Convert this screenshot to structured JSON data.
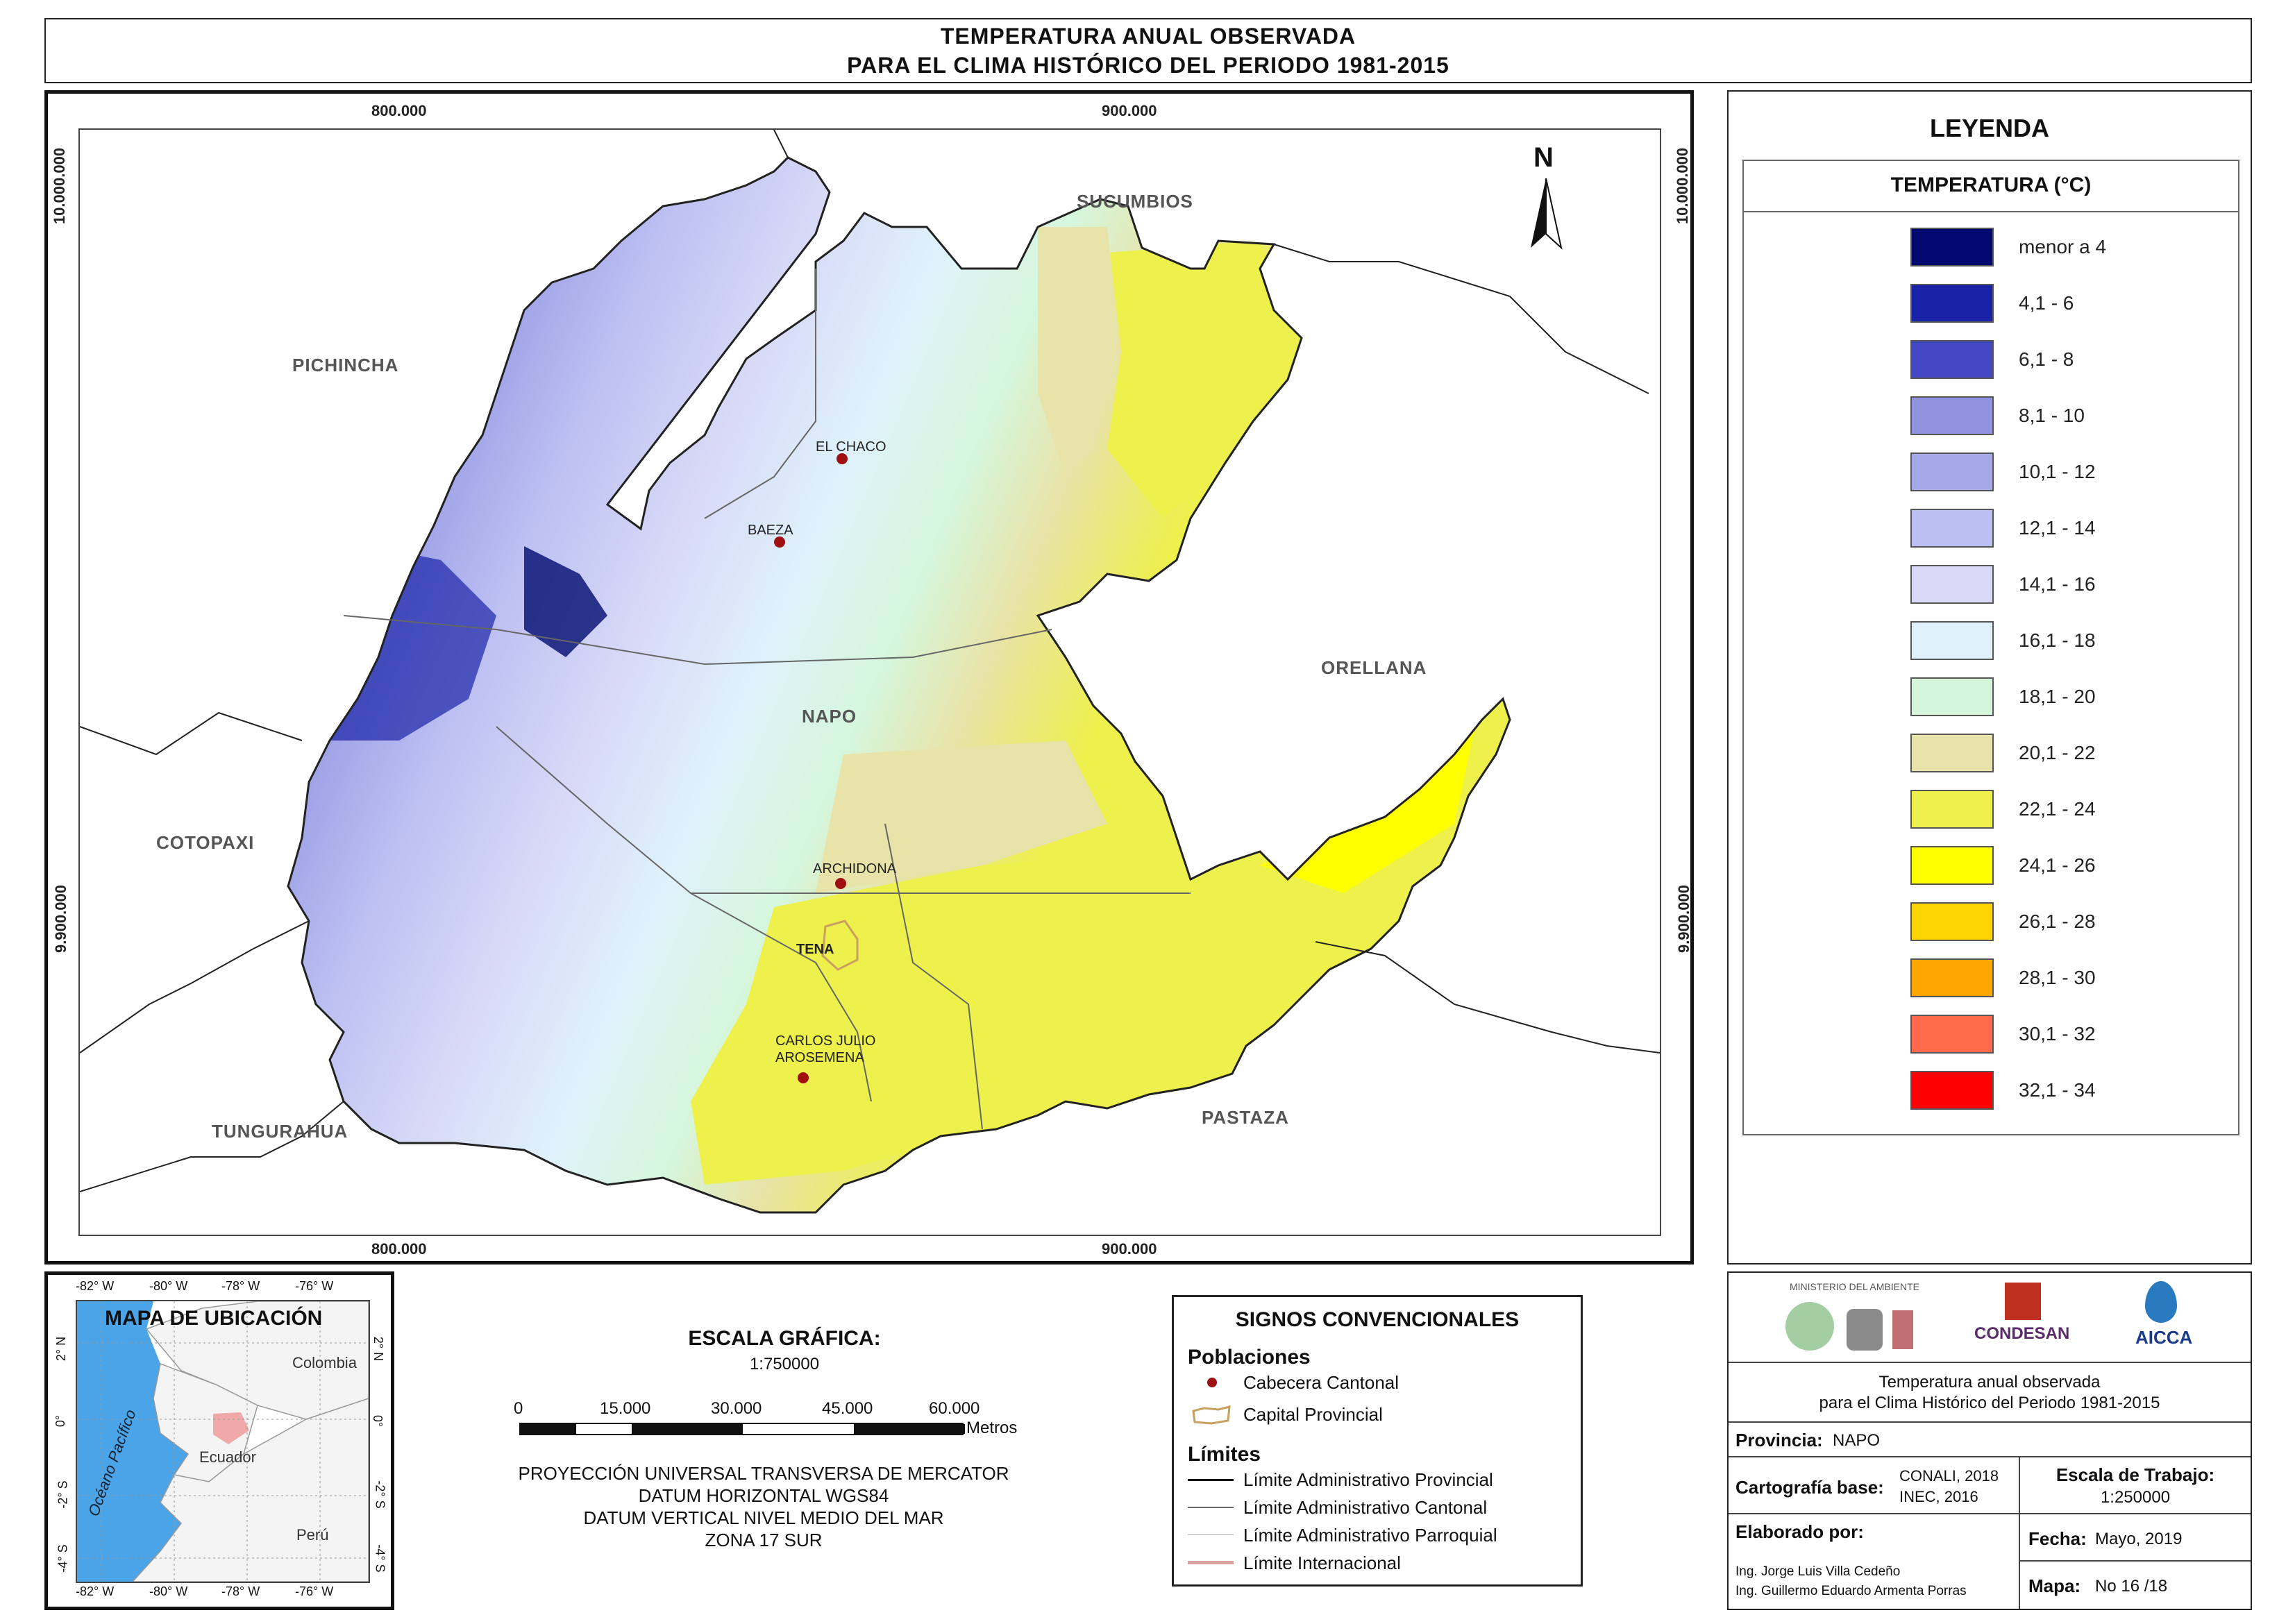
{
  "title": {
    "line1": "TEMPERATURA ANUAL OBSERVADA",
    "line2": "PARA EL CLIMA HISTÓRICO DEL PERIODO 1981-2015"
  },
  "map": {
    "grid_x": [
      "800.000",
      "900.000"
    ],
    "grid_y": [
      "10.000.000",
      "9.900.000"
    ],
    "north": "N",
    "neighbors": [
      "PICHINCHA",
      "SUCUMBIOS",
      "ORELLANA",
      "COTOPAXI",
      "TUNGURAHUA",
      "PASTAZA"
    ],
    "province_label": "NAPO",
    "towns": [
      "EL CHACO",
      "BAEZA",
      "ARCHIDONA",
      "TENA",
      "CARLOS JULIO",
      "AROSEMENA"
    ]
  },
  "legend": {
    "title": "LEYENDA",
    "subtitle": "TEMPERATURA (°C)",
    "classes": [
      {
        "label": "menor a 4",
        "color": "#000a6e"
      },
      {
        "label": "4,1 - 6",
        "color": "#1a23a8"
      },
      {
        "label": "6,1 - 8",
        "color": "#4248c4"
      },
      {
        "label": "8,1 - 10",
        "color": "#8f93e0"
      },
      {
        "label": "10,1 - 12",
        "color": "#a5a9ea"
      },
      {
        "label": "12,1 - 14",
        "color": "#bcbff2"
      },
      {
        "label": "14,1 - 16",
        "color": "#d8daf7"
      },
      {
        "label": "16,1 - 18",
        "color": "#dff2fb"
      },
      {
        "label": "18,1 - 20",
        "color": "#d6f6dc"
      },
      {
        "label": "20,1 - 22",
        "color": "#e8e3a8"
      },
      {
        "label": "22,1 - 24",
        "color": "#eef04c"
      },
      {
        "label": "24,1 - 26",
        "color": "#ffff00"
      },
      {
        "label": "26,1 - 28",
        "color": "#ffd400"
      },
      {
        "label": "28,1 - 30",
        "color": "#ffa600"
      },
      {
        "label": "30,1 - 32",
        "color": "#ff6a4c"
      },
      {
        "label": "32,1 - 34",
        "color": "#ff0000"
      }
    ]
  },
  "location_map": {
    "title": "MAPA DE UBICACIÓN",
    "lon_ticks": [
      "-82° W",
      "-80° W",
      "-78° W",
      "-76° W"
    ],
    "lat_ticks": [
      "2° N",
      "0°",
      "-2° S",
      "-4° S"
    ],
    "ocean": "Océano Pacífico",
    "countries": [
      "Colombia",
      "Ecuador",
      "Perú"
    ]
  },
  "scale": {
    "title": "ESCALA GRÁFICA:",
    "ratio": "1:750000",
    "ticks": [
      "0",
      "15.000",
      "30.000",
      "45.000",
      "60.000"
    ],
    "unit": "Metros",
    "projection": [
      "PROYECCIÓN UNIVERSAL TRANSVERSA DE MERCATOR",
      "DATUM HORIZONTAL WGS84",
      "DATUM VERTICAL NIVEL MEDIO DEL MAR",
      "ZONA 17 SUR"
    ]
  },
  "signs": {
    "title": "SIGNOS CONVENCIONALES",
    "populations_header": "Poblaciones",
    "cabecera": "Cabecera Cantonal",
    "capital": "Capital Provincial",
    "limits_header": "Límites",
    "limits": [
      "Límite Administrativo Provincial",
      "Límite Administrativo Cantonal",
      "Límite Administrativo Parroquial",
      "Límite Internacional"
    ],
    "colors": {
      "cabecera": "#a01010",
      "capital": "#c8a060",
      "internacional": "#d9a0a0"
    }
  },
  "info": {
    "logos": [
      "MINISTERIO DEL AMBIENTE",
      "CONDESAN",
      "AICCA"
    ],
    "description_l1": "Temperatura anual observada",
    "description_l2": "para el Clima Histórico del Periodo 1981-2015",
    "provincia_label": "Provincia:",
    "provincia": "NAPO",
    "cartografia_label": "Cartografía base:",
    "cartografia_1": "CONALI, 2018",
    "cartografia_2": "INEC, 2016",
    "escala_label": "Escala de Trabajo:",
    "escala": "1:250000",
    "elaborado_label": "Elaborado por:",
    "elaborado_1": "Ing. Jorge Luis Villa Cedeño",
    "elaborado_2": "Ing. Guillermo Eduardo Armenta Porras",
    "fecha_label": "Fecha:",
    "fecha": "Mayo, 2019",
    "mapa_label": "Mapa:",
    "mapa": "No 16 /18"
  }
}
